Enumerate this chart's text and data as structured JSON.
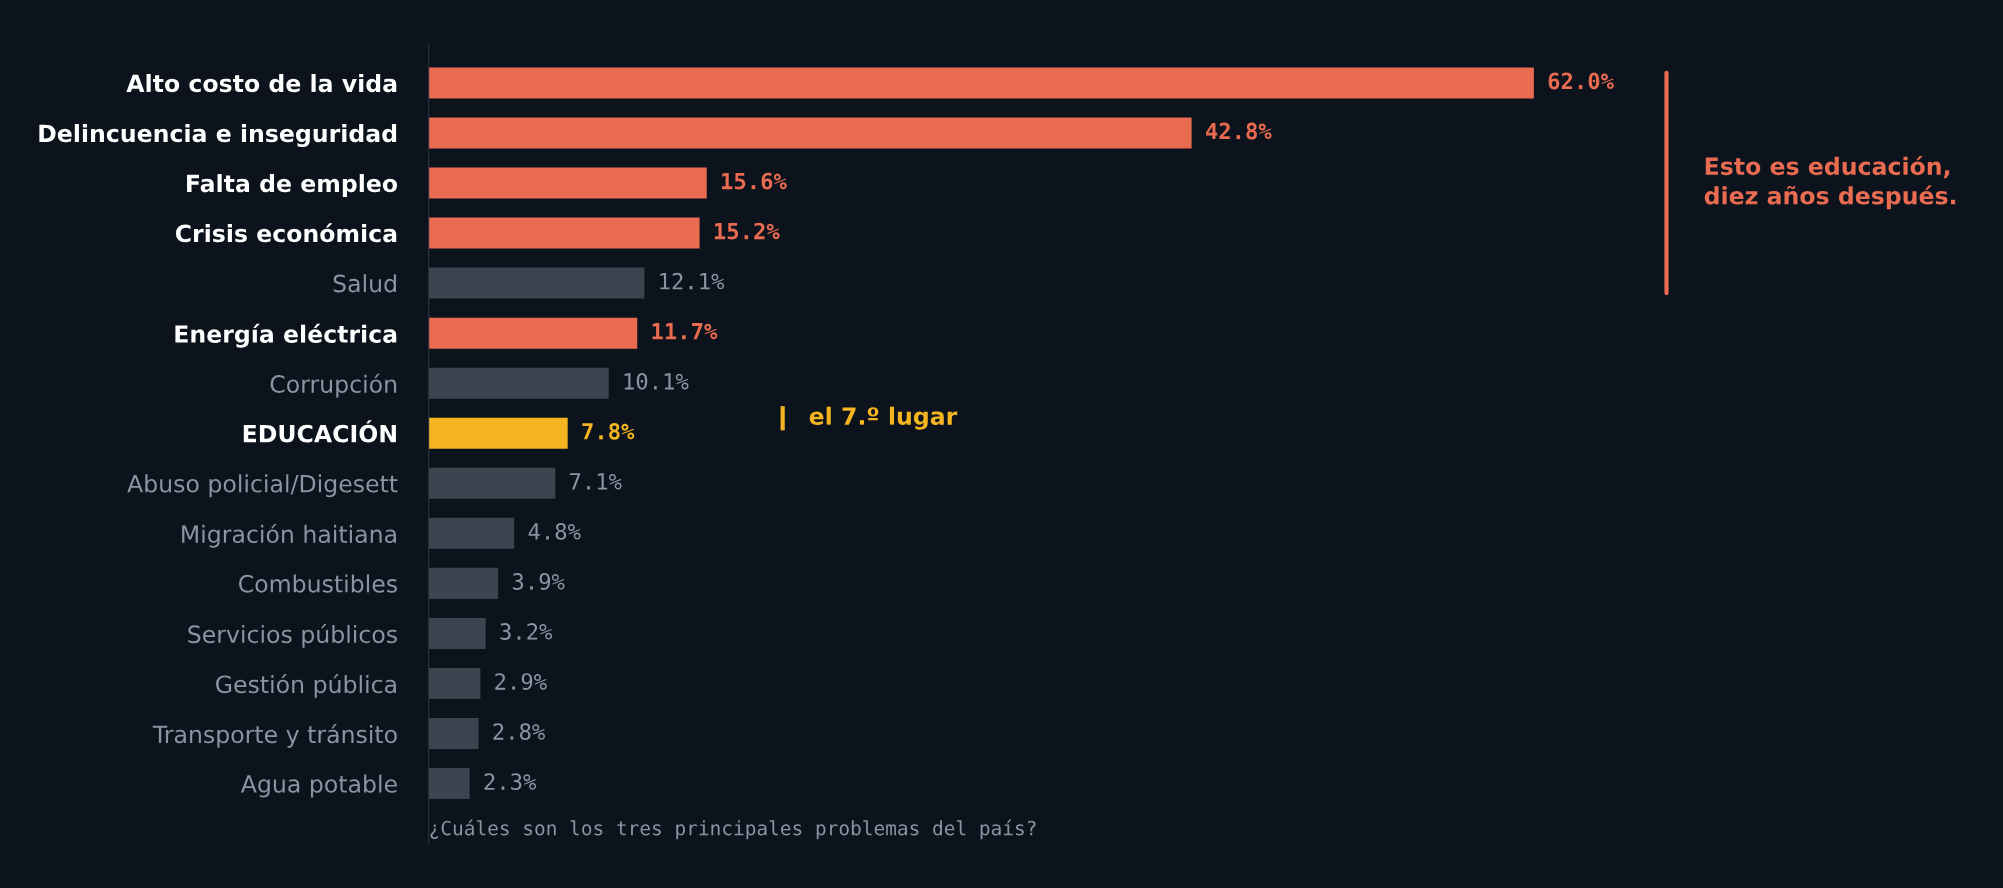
{
  "chart_data": {
    "type": "bar",
    "orientation": "horizontal",
    "categories": [
      "Alto costo de la vida",
      "Delincuencia e inseguridad",
      "Falta de empleo",
      "Crisis económica",
      "Salud",
      "Energía eléctrica",
      "Corrupción",
      "EDUCACIÓN",
      "Abuso policial/Digesett",
      "Migración haitiana",
      "Combustibles",
      "Servicios públicos",
      "Gestión pública",
      "Transporte y tránsito",
      "Agua potable"
    ],
    "values": [
      62.0,
      42.8,
      15.6,
      15.2,
      12.1,
      11.7,
      10.1,
      7.8,
      7.1,
      4.8,
      3.9,
      3.2,
      2.9,
      2.8,
      2.3
    ],
    "colors": [
      "#e96b50",
      "#e96b50",
      "#e96b50",
      "#e96b50",
      "#3a4550",
      "#e96b50",
      "#3a4550",
      "#f5b520",
      "#3a4550",
      "#3a4550",
      "#3a4550",
      "#3a4550",
      "#3a4550",
      "#3a4550",
      "#3a4550"
    ],
    "value_labels": [
      "62.0%",
      "42.8%",
      "15.6%",
      "15.2%",
      "12.1%",
      "11.7%",
      "10.1%",
      "7.8%",
      "7.1%",
      "4.8%",
      "3.9%",
      "3.2%",
      "2.9%",
      "2.8%",
      "2.3%"
    ],
    "annotations": [
      "el 7.º lugar",
      "Esto es educación,\ndiez años después.",
      "¿Cuáles son los tres principales problemas del país?"
    ],
    "grid": false,
    "legend": false
  }
}
